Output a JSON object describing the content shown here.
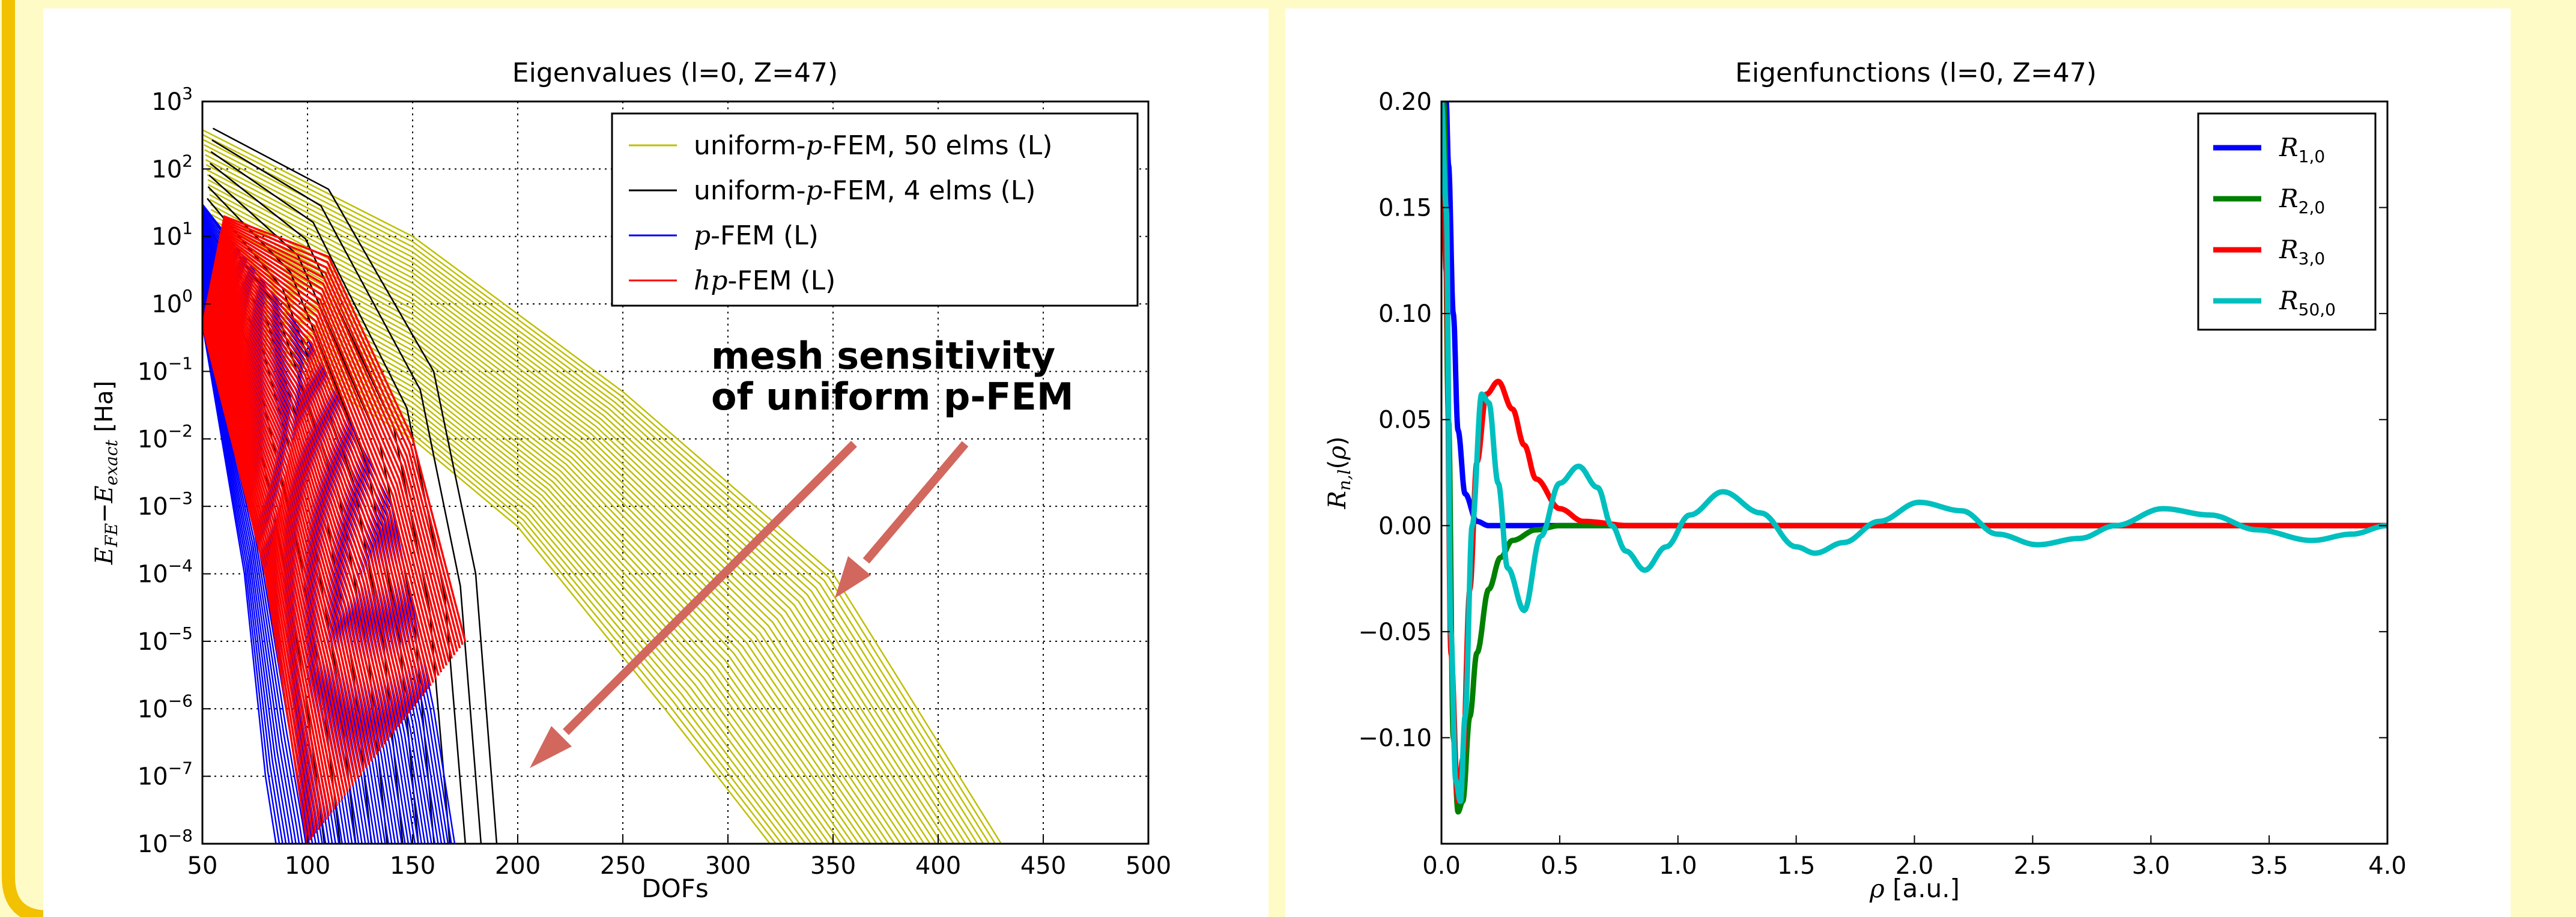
{
  "colors": {
    "background": "#fffbc6",
    "frame_border": "#f2c100",
    "uniform50": "#bfbf00",
    "uniform4": "#000000",
    "pfem": "#0000ff",
    "hpfem": "#ff0000",
    "annotation": "#d2675e",
    "R10": "#0000ff",
    "R20": "#008000",
    "R30": "#ff0000",
    "R500": "#00bfbf"
  },
  "chart_data": [
    {
      "type": "line",
      "title": "Eigenvalues (l=0, Z=47)",
      "xlabel": "DOFs",
      "ylabel": "E_FE − E_exact [Ha]",
      "yscale": "log",
      "xlim": [
        50,
        500
      ],
      "ylim_exponent": [
        -8,
        3
      ],
      "x_ticks": [
        50,
        100,
        150,
        200,
        250,
        300,
        350,
        400,
        450,
        500
      ],
      "y_tick_exponents": [
        3,
        2,
        1,
        0,
        -1,
        -2,
        -3,
        -4,
        -5,
        -6,
        -7,
        -8
      ],
      "grid": true,
      "legend_position": "top-right",
      "legend": [
        {
          "pre": "uniform-",
          "var": "p",
          "post": "-FEM, 50 elms (L)",
          "color": "#bfbf00"
        },
        {
          "pre": "uniform-",
          "var": "p",
          "post": "-FEM, 4 elms (L)",
          "color": "#000000"
        },
        {
          "pre": "",
          "var": "p",
          "post": "-FEM (L)",
          "color": "#0000ff"
        },
        {
          "pre": "",
          "var": "hp",
          "post": "-FEM (L)",
          "color": "#ff0000"
        }
      ],
      "annotation": [
        "mesh sensitivity",
        "of uniform p-FEM"
      ],
      "series": [
        {
          "name": "uniform-p-FEM, 50 elms (L)",
          "family": "uniform50",
          "curves": 40,
          "first": [
            [
              50,
              380
            ],
            [
              150,
              10
            ],
            [
              250,
              0.05
            ],
            [
              350,
              0.0001
            ],
            [
              430,
              1e-08
            ]
          ],
          "last": [
            [
              60,
              0.5
            ],
            [
              150,
              0.01
            ],
            [
              200,
              0.0005
            ],
            [
              270,
              1e-06
            ],
            [
              320,
              1e-08
            ]
          ]
        },
        {
          "name": "uniform-p-FEM, 4 elms (L)",
          "family": "uniform4",
          "curves": 12,
          "first": [
            [
              55,
              400
            ],
            [
              110,
              50
            ],
            [
              160,
              0.1
            ],
            [
              180,
              0.0001
            ],
            [
              190,
              1e-08
            ]
          ],
          "last": [
            [
              50,
              5
            ],
            [
              70,
              0.1
            ],
            [
              90,
              0.0001
            ],
            [
              100,
              1e-06
            ],
            [
              108,
              1e-08
            ]
          ]
        },
        {
          "name": "p-FEM (L)",
          "family": "pfem",
          "curves": 55,
          "first": [
            [
              50,
              30
            ],
            [
              100,
              0.3
            ],
            [
              140,
              0.001
            ],
            [
              160,
              1e-06
            ],
            [
              170,
              1e-08
            ]
          ],
          "last": [
            [
              50,
              0.5
            ],
            [
              70,
              0.0001
            ],
            [
              80,
              1e-07
            ],
            [
              85,
              1e-08
            ]
          ]
        },
        {
          "name": "hp-FEM (L)",
          "family": "hpfem",
          "curves": 60,
          "first": [
            [
              60,
              20
            ],
            [
              110,
              5
            ],
            [
              150,
              0.01
            ],
            [
              175,
              1e-05
            ]
          ],
          "last": [
            [
              50,
              0.5
            ],
            [
              80,
              0.0001
            ],
            [
              95,
              1e-07
            ],
            [
              100,
              1e-08
            ]
          ]
        }
      ]
    },
    {
      "type": "line",
      "title": "Eigenfunctions (l=0, Z=47)",
      "xlabel": "ρ [a.u.]",
      "ylabel": "R_{n,l}(ρ)",
      "xlim": [
        0.0,
        4.0
      ],
      "ylim": [
        -0.15,
        0.2
      ],
      "x_ticks": [
        "0.0",
        "0.5",
        "1.0",
        "1.5",
        "2.0",
        "2.5",
        "3.0",
        "3.5",
        "4.0"
      ],
      "y_ticks": [
        "0.20",
        "0.15",
        "0.10",
        "0.05",
        "0.00",
        "−0.05",
        "−0.10"
      ],
      "grid": false,
      "legend_position": "top-right",
      "legend": [
        {
          "name": "R_{1,0}",
          "base": "R",
          "sub": "1,0",
          "color": "#0000ff"
        },
        {
          "name": "R_{2,0}",
          "base": "R",
          "sub": "2,0",
          "color": "#008000"
        },
        {
          "name": "R_{3,0}",
          "base": "R",
          "sub": "3,0",
          "color": "#ff0000"
        },
        {
          "name": "R_{50,0}",
          "base": "R",
          "sub": "50,0",
          "color": "#00bfbf"
        }
      ],
      "series": [
        {
          "name": "R_{1,0}",
          "color": "#0000ff",
          "x": [
            0.0,
            0.005,
            0.01,
            0.02,
            0.03,
            0.05,
            0.07,
            0.1,
            0.15,
            0.2,
            0.3,
            4.0
          ],
          "y": [
            0.2,
            0.2,
            0.2,
            0.2,
            0.17,
            0.1,
            0.045,
            0.015,
            0.002,
            0.0,
            0.0,
            0.0
          ]
        },
        {
          "name": "R_{2,0}",
          "color": "#008000",
          "x": [
            0.0,
            0.01,
            0.03,
            0.05,
            0.07,
            0.09,
            0.12,
            0.15,
            0.2,
            0.25,
            0.3,
            0.4,
            0.5,
            4.0
          ],
          "y": [
            0.2,
            0.2,
            0.05,
            -0.1,
            -0.135,
            -0.13,
            -0.09,
            -0.06,
            -0.03,
            -0.015,
            -0.007,
            -0.002,
            0.0,
            0.0
          ]
        },
        {
          "name": "R_{3,0}",
          "color": "#ff0000",
          "x": [
            0.0,
            0.02,
            0.04,
            0.07,
            0.09,
            0.12,
            0.15,
            0.19,
            0.24,
            0.3,
            0.35,
            0.4,
            0.5,
            0.6,
            0.8,
            4.0
          ],
          "y": [
            0.2,
            0.12,
            -0.06,
            -0.13,
            -0.11,
            -0.03,
            0.03,
            0.062,
            0.068,
            0.055,
            0.038,
            0.022,
            0.008,
            0.002,
            0.0,
            0.0
          ]
        },
        {
          "name": "R_{50,0}",
          "color": "#00bfbf",
          "x": [
            0.0,
            0.02,
            0.04,
            0.06,
            0.08,
            0.1,
            0.13,
            0.17,
            0.2,
            0.24,
            0.28,
            0.35,
            0.42,
            0.5,
            0.58,
            0.66,
            0.72,
            0.78,
            0.86,
            0.95,
            1.05,
            1.19,
            1.35,
            1.5,
            1.58,
            1.7,
            1.85,
            2.02,
            2.2,
            2.35,
            2.52,
            2.7,
            2.85,
            3.05,
            3.25,
            3.45,
            3.68,
            3.85,
            4.0
          ],
          "y": [
            0.2,
            0.15,
            -0.05,
            -0.12,
            -0.13,
            -0.09,
            0.0,
            0.062,
            0.058,
            0.02,
            -0.02,
            -0.04,
            -0.005,
            0.02,
            0.028,
            0.018,
            0.0,
            -0.012,
            -0.021,
            -0.01,
            0.005,
            0.016,
            0.006,
            -0.01,
            -0.013,
            -0.008,
            0.002,
            0.011,
            0.007,
            -0.004,
            -0.009,
            -0.006,
            0.0,
            0.008,
            0.005,
            -0.002,
            -0.007,
            -0.004,
            0.0
          ]
        }
      ]
    }
  ]
}
